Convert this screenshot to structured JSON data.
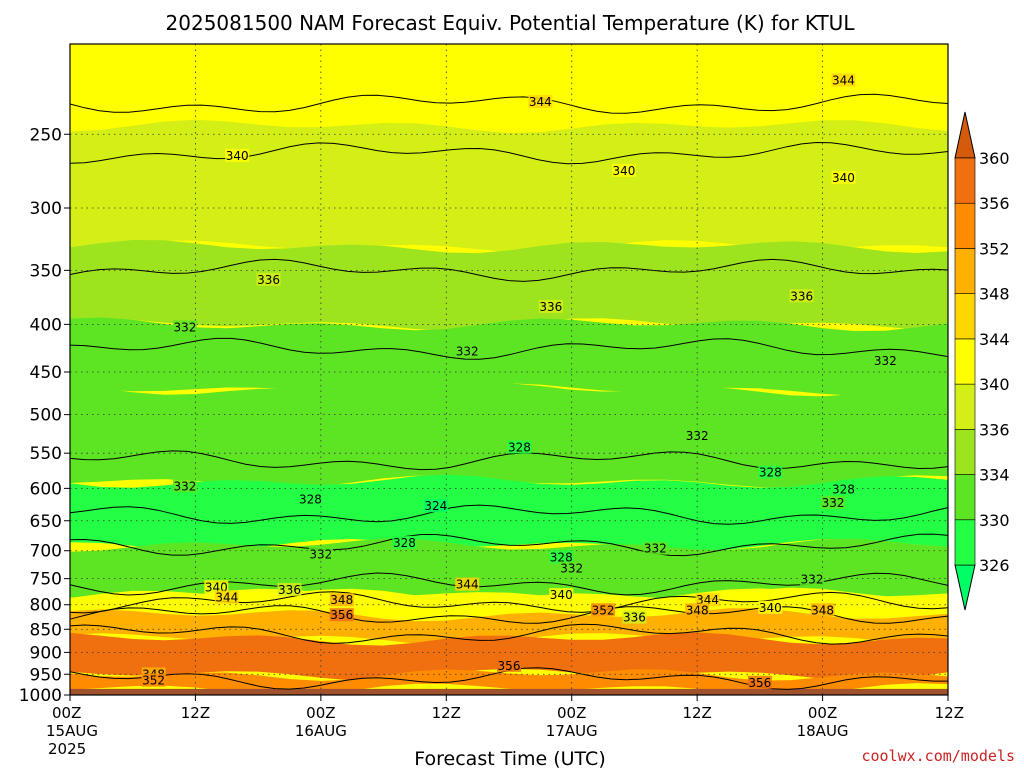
{
  "credit": "coolwx.com/models",
  "chart_data": {
    "type": "heatmap",
    "title": "2025081500 NAM Forecast Equiv. Potential Temperature (K) for KTUL",
    "xlabel": "Forecast Time (UTC)",
    "ylabel": "",
    "y_scale": "pressure (reversed)",
    "ylim": [
      1000,
      200
    ],
    "y_ticks": [
      250,
      300,
      350,
      400,
      450,
      500,
      550,
      600,
      650,
      700,
      750,
      800,
      850,
      900,
      950,
      1000
    ],
    "x_ticks": [
      {
        "hour": 0,
        "label": "00Z",
        "sub": "15AUG",
        "sub2": "2025"
      },
      {
        "hour": 12,
        "label": "12Z",
        "sub": "",
        "sub2": ""
      },
      {
        "hour": 24,
        "label": "00Z",
        "sub": "16AUG",
        "sub2": ""
      },
      {
        "hour": 36,
        "label": "12Z",
        "sub": "",
        "sub2": ""
      },
      {
        "hour": 48,
        "label": "00Z",
        "sub": "17AUG",
        "sub2": ""
      },
      {
        "hour": 60,
        "label": "12Z",
        "sub": "",
        "sub2": ""
      },
      {
        "hour": 72,
        "label": "00Z",
        "sub": "18AUG",
        "sub2": ""
      },
      {
        "hour": 84,
        "label": "12Z",
        "sub": "",
        "sub2": ""
      }
    ],
    "grid": true,
    "colorbar": {
      "levels": [
        326,
        330,
        334,
        336,
        340,
        344,
        348,
        352,
        356,
        360
      ],
      "colors": [
        "#22ff44",
        "#5de524",
        "#9ee41e",
        "#d4ef16",
        "#ffff00",
        "#ffd700",
        "#ffb000",
        "#ff8c00",
        "#f07010",
        "#d45a0c"
      ],
      "under_color": "#00ff66",
      "over_color": "#d45a0c"
    },
    "layers": [
      {
        "p_top": 200,
        "p_bot": 245,
        "value": 342
      },
      {
        "p_top": 245,
        "p_bot": 330,
        "value": 338
      },
      {
        "p_top": 330,
        "p_bot": 400,
        "value": 335
      },
      {
        "p_top": 400,
        "p_bot": 470,
        "value": 332
      },
      {
        "p_top": 470,
        "p_bot": 590,
        "value": 330
      },
      {
        "p_top": 590,
        "p_bot": 690,
        "value": 327
      },
      {
        "p_top": 690,
        "p_bot": 780,
        "value": 331
      },
      {
        "p_top": 780,
        "p_bot": 820,
        "value": 342
      },
      {
        "p_top": 820,
        "p_bot": 870,
        "value": 350
      },
      {
        "p_top": 870,
        "p_bot": 950,
        "value": 356
      },
      {
        "p_top": 950,
        "p_bot": 985,
        "value": 352
      }
    ],
    "contour_levels": [
      {
        "value": 344,
        "pressure": 232
      },
      {
        "value": 340,
        "pressure": 262
      },
      {
        "value": 336,
        "pressure": 350
      },
      {
        "value": 332,
        "pressure": 425
      },
      {
        "value": 328,
        "pressure": 560
      },
      {
        "value": 324,
        "pressure": 640
      },
      {
        "value": 328,
        "pressure": 690
      },
      {
        "value": 332,
        "pressure": 760
      },
      {
        "value": 340,
        "pressure": 795
      },
      {
        "value": 348,
        "pressure": 820
      },
      {
        "value": 352,
        "pressure": 860
      },
      {
        "value": 356,
        "pressure": 960
      }
    ],
    "contour_labels": [
      {
        "text": "344",
        "hour": 45,
        "pressure": 232
      },
      {
        "text": "344",
        "hour": 74,
        "pressure": 220
      },
      {
        "text": "340",
        "hour": 16,
        "pressure": 265
      },
      {
        "text": "340",
        "hour": 53,
        "pressure": 275
      },
      {
        "text": "340",
        "hour": 74,
        "pressure": 280
      },
      {
        "text": "336",
        "hour": 19,
        "pressure": 360
      },
      {
        "text": "336",
        "hour": 46,
        "pressure": 385
      },
      {
        "text": "336",
        "hour": 70,
        "pressure": 375
      },
      {
        "text": "332",
        "hour": 11,
        "pressure": 405
      },
      {
        "text": "332",
        "hour": 38,
        "pressure": 430
      },
      {
        "text": "332",
        "hour": 78,
        "pressure": 440
      },
      {
        "text": "332",
        "hour": 60,
        "pressure": 530
      },
      {
        "text": "328",
        "hour": 43,
        "pressure": 545
      },
      {
        "text": "328",
        "hour": 67,
        "pressure": 580
      },
      {
        "text": "332",
        "hour": 11,
        "pressure": 600
      },
      {
        "text": "328",
        "hour": 23,
        "pressure": 620
      },
      {
        "text": "328",
        "hour": 74,
        "pressure": 605
      },
      {
        "text": "324",
        "hour": 35,
        "pressure": 630
      },
      {
        "text": "332",
        "hour": 73,
        "pressure": 625
      },
      {
        "text": "328",
        "hour": 32,
        "pressure": 690
      },
      {
        "text": "332",
        "hour": 24,
        "pressure": 710
      },
      {
        "text": "328",
        "hour": 47,
        "pressure": 715
      },
      {
        "text": "332",
        "hour": 48,
        "pressure": 735
      },
      {
        "text": "332",
        "hour": 56,
        "pressure": 700
      },
      {
        "text": "340",
        "hour": 14,
        "pressure": 770
      },
      {
        "text": "336",
        "hour": 21,
        "pressure": 775
      },
      {
        "text": "344",
        "hour": 15,
        "pressure": 790
      },
      {
        "text": "344",
        "hour": 38,
        "pressure": 765
      },
      {
        "text": "348",
        "hour": 26,
        "pressure": 795
      },
      {
        "text": "340",
        "hour": 47,
        "pressure": 785
      },
      {
        "text": "352",
        "hour": 51,
        "pressure": 815
      },
      {
        "text": "336",
        "hour": 54,
        "pressure": 830
      },
      {
        "text": "344",
        "hour": 61,
        "pressure": 795
      },
      {
        "text": "348",
        "hour": 60,
        "pressure": 815
      },
      {
        "text": "340",
        "hour": 67,
        "pressure": 810
      },
      {
        "text": "348",
        "hour": 72,
        "pressure": 815
      },
      {
        "text": "332",
        "hour": 71,
        "pressure": 755
      },
      {
        "text": "356",
        "hour": 26,
        "pressure": 825
      },
      {
        "text": "356",
        "hour": 42,
        "pressure": 935
      },
      {
        "text": "348",
        "hour": 8,
        "pressure": 955
      },
      {
        "text": "352",
        "hour": 8,
        "pressure": 970
      },
      {
        "text": "356",
        "hour": 66,
        "pressure": 975
      }
    ]
  }
}
